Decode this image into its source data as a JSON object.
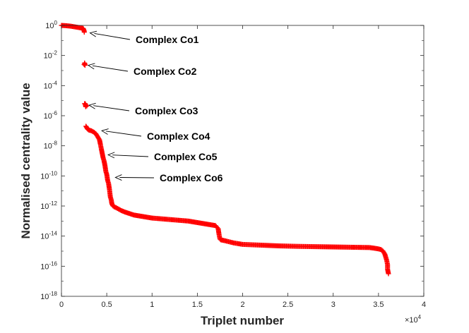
{
  "chart_data": {
    "type": "scatter",
    "marker": "+",
    "series_color": "#ff0000",
    "xlabel": "Triplet number",
    "ylabel": "Normalised centrality value",
    "x_multiplier": "×10",
    "x_multiplier_exp": "4",
    "xlim": [
      0,
      4
    ],
    "ylim_exp": [
      -18,
      0
    ],
    "yscale": "log",
    "x_ticks": [
      0,
      0.5,
      1,
      1.5,
      2,
      2.5,
      3,
      3.5,
      4
    ],
    "x_tick_labels": [
      "0",
      "0.5",
      "1",
      "1.5",
      "2",
      "2.5",
      "3",
      "3.5",
      "4"
    ],
    "y_ticks_exp": [
      0,
      -2,
      -4,
      -6,
      -8,
      -10,
      -12,
      -14,
      -16,
      -18
    ],
    "y_tick_base": "10",
    "y_tick_exps": [
      "0",
      "-2",
      "-4",
      "-6",
      "-8",
      "-10",
      "-12",
      "-14",
      "-16",
      "-18"
    ],
    "curve_x": [
      0.0,
      0.05,
      0.1,
      0.15,
      0.2,
      0.24,
      0.25,
      0.252,
      0.255,
      0.258,
      0.26,
      0.262,
      0.265,
      0.268,
      0.27,
      0.275,
      0.28,
      0.285,
      0.29,
      0.3,
      0.33,
      0.36,
      0.38,
      0.4,
      0.42,
      0.43,
      0.44,
      0.45,
      0.46,
      0.47,
      0.48,
      0.485,
      0.49,
      0.5,
      0.51,
      0.52,
      0.53,
      0.54,
      0.55,
      0.555,
      0.56,
      0.57,
      0.58,
      0.6,
      0.63,
      0.66,
      0.7,
      0.75,
      0.8,
      0.85,
      0.9,
      0.95,
      1.0,
      1.1,
      1.2,
      1.3,
      1.4,
      1.45,
      1.5,
      1.55,
      1.6,
      1.65,
      1.7,
      1.73,
      1.74,
      1.75,
      1.76,
      1.8,
      1.9,
      2.0,
      2.2,
      2.4,
      2.6,
      2.8,
      3.0,
      3.2,
      3.3,
      3.4,
      3.45,
      3.5,
      3.53,
      3.55,
      3.57,
      3.58,
      3.59,
      3.6,
      3.6,
      3.61
    ],
    "curve_log_y": [
      0.0,
      -0.02,
      -0.05,
      -0.1,
      -0.15,
      -0.2,
      -0.35,
      -0.45,
      -2.5,
      -2.55,
      -2.6,
      -5.2,
      -5.3,
      -5.4,
      -6.7,
      -6.75,
      -6.8,
      -6.85,
      -6.9,
      -6.95,
      -7.0,
      -7.1,
      -7.2,
      -7.4,
      -7.6,
      -7.9,
      -8.2,
      -8.5,
      -8.8,
      -9.0,
      -9.3,
      -9.5,
      -9.7,
      -9.9,
      -10.3,
      -10.5,
      -10.9,
      -11.4,
      -11.6,
      -11.8,
      -11.9,
      -12.0,
      -12.05,
      -12.1,
      -12.2,
      -12.3,
      -12.4,
      -12.5,
      -12.6,
      -12.65,
      -12.7,
      -12.75,
      -12.8,
      -12.85,
      -12.9,
      -12.95,
      -13.0,
      -13.05,
      -13.1,
      -13.15,
      -13.2,
      -13.25,
      -13.3,
      -13.5,
      -13.9,
      -14.2,
      -14.25,
      -14.3,
      -14.45,
      -14.55,
      -14.6,
      -14.65,
      -14.68,
      -14.7,
      -14.72,
      -14.74,
      -14.75,
      -14.76,
      -14.8,
      -14.85,
      -14.9,
      -15.0,
      -15.2,
      -15.4,
      -15.6,
      -15.9,
      -16.2,
      -16.5
    ],
    "isolated_points": [
      {
        "x": 0.25,
        "log_y": -2.6
      },
      {
        "x": 0.255,
        "log_y": -5.2
      },
      {
        "x": 0.27,
        "log_y": -5.3
      }
    ],
    "annotations": [
      {
        "label": "Complex Co1",
        "x": 0.3,
        "log_y": -0.5
      },
      {
        "label": "Complex Co2",
        "x": 0.28,
        "log_y": -2.65
      },
      {
        "label": "Complex Co3",
        "x": 0.29,
        "log_y": -5.3
      },
      {
        "label": "Complex Co4",
        "x": 0.43,
        "log_y": -7.0
      },
      {
        "label": "Complex Co5",
        "x": 0.5,
        "log_y": -8.6
      },
      {
        "label": "Complex Co6",
        "x": 0.58,
        "log_y": -10.1
      }
    ]
  }
}
